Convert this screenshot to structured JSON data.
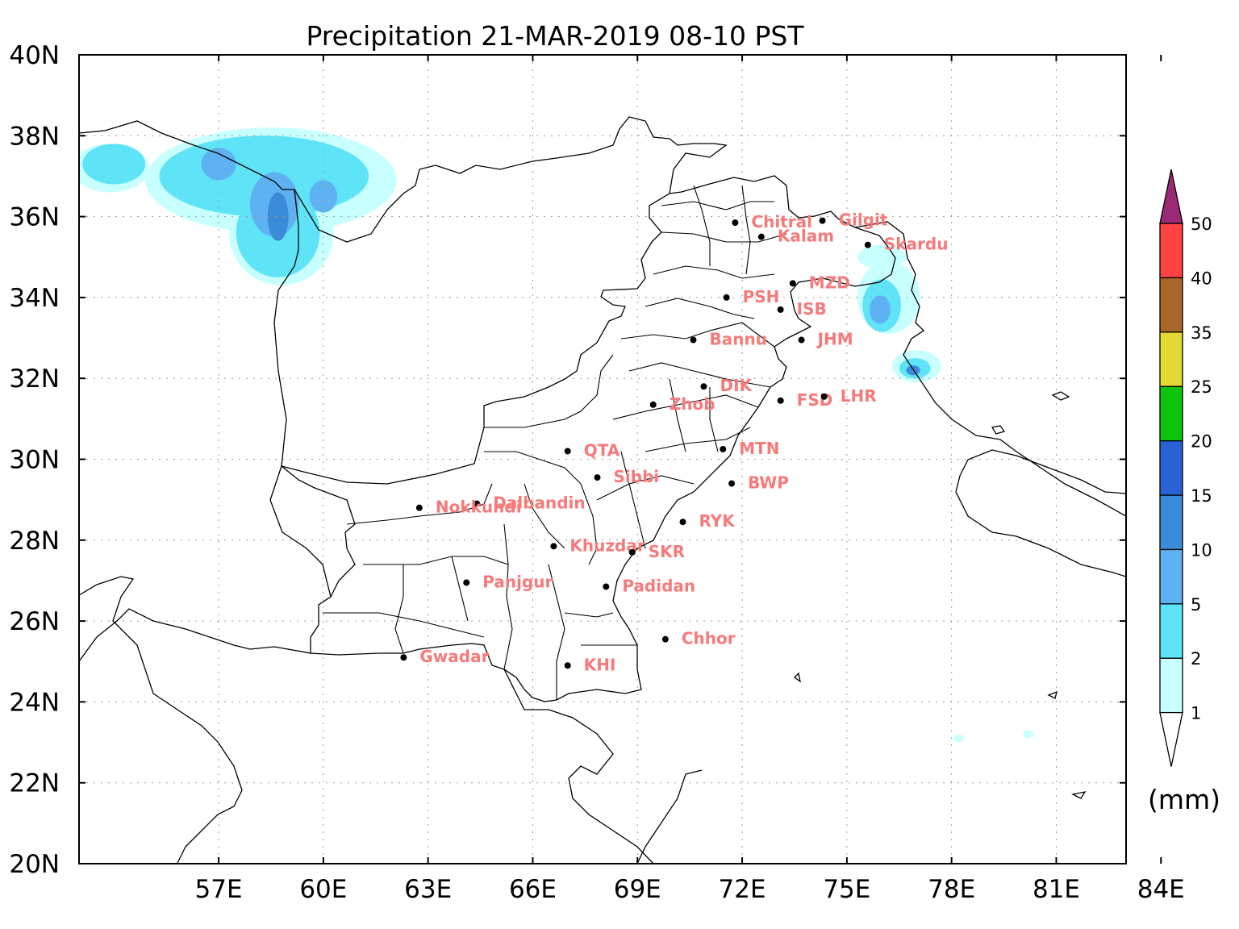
{
  "title": "Precipitation 21-MAR-2019 08-10 PST",
  "axes": {
    "lon_range": [
      53,
      83
    ],
    "lat_range": [
      20,
      40
    ],
    "lon_ticks": [
      {
        "value": 57,
        "label": "57E"
      },
      {
        "value": 60,
        "label": "60E"
      },
      {
        "value": 63,
        "label": "63E"
      },
      {
        "value": 66,
        "label": "66E"
      },
      {
        "value": 69,
        "label": "69E"
      },
      {
        "value": 72,
        "label": "72E"
      },
      {
        "value": 75,
        "label": "75E"
      },
      {
        "value": 78,
        "label": "78E"
      },
      {
        "value": 81,
        "label": "81E"
      },
      {
        "value": 84,
        "label": "84E"
      }
    ],
    "lat_ticks": [
      {
        "value": 20,
        "label": "20N"
      },
      {
        "value": 22,
        "label": "22N"
      },
      {
        "value": 24,
        "label": "24N"
      },
      {
        "value": 26,
        "label": "26N"
      },
      {
        "value": 28,
        "label": "28N"
      },
      {
        "value": 30,
        "label": "30N"
      },
      {
        "value": 32,
        "label": "32N"
      },
      {
        "value": 34,
        "label": "34N"
      },
      {
        "value": 36,
        "label": "36N"
      },
      {
        "value": 38,
        "label": "38N"
      },
      {
        "value": 40,
        "label": "40N"
      }
    ],
    "grid": "dotted"
  },
  "colorbar": {
    "unit_label": "(mm)",
    "levels": [
      {
        "label": "1",
        "color": "#c8ffff"
      },
      {
        "label": "2",
        "color": "#5fe3f7"
      },
      {
        "label": "5",
        "color": "#5fb2f2"
      },
      {
        "label": "10",
        "color": "#3a8cd8"
      },
      {
        "label": "15",
        "color": "#2a62d6"
      },
      {
        "label": "20",
        "color": "#0cc40c"
      },
      {
        "label": "25",
        "color": "#e3d834"
      },
      {
        "label": "35",
        "color": "#a8662a"
      },
      {
        "label": "40",
        "color": "#ff4242"
      },
      {
        "label": "50",
        "color": "#9b2a74"
      }
    ],
    "under_color": "#ffffff",
    "over_color": "#9b2a74"
  },
  "stations": [
    {
      "name": "Chitral",
      "lon": 71.8,
      "lat": 35.85
    },
    {
      "name": "Gilgit",
      "lon": 74.3,
      "lat": 35.9
    },
    {
      "name": "Kalam",
      "lon": 72.55,
      "lat": 35.5
    },
    {
      "name": "Skardu",
      "lon": 75.6,
      "lat": 35.3
    },
    {
      "name": "MZD",
      "lon": 73.45,
      "lat": 34.35
    },
    {
      "name": "PSH",
      "lon": 71.55,
      "lat": 34.0
    },
    {
      "name": "ISB",
      "lon": 73.1,
      "lat": 33.7
    },
    {
      "name": "Bannu",
      "lon": 70.6,
      "lat": 32.95
    },
    {
      "name": "JHM",
      "lon": 73.7,
      "lat": 32.95
    },
    {
      "name": "DIK",
      "lon": 70.9,
      "lat": 31.8
    },
    {
      "name": "Zhob",
      "lon": 69.45,
      "lat": 31.35
    },
    {
      "name": "FSD",
      "lon": 73.1,
      "lat": 31.45
    },
    {
      "name": "LHR",
      "lon": 74.35,
      "lat": 31.55
    },
    {
      "name": "QTA",
      "lon": 67.0,
      "lat": 30.2
    },
    {
      "name": "MTN",
      "lon": 71.45,
      "lat": 30.25
    },
    {
      "name": "Sibbi",
      "lon": 67.85,
      "lat": 29.55
    },
    {
      "name": "BWP",
      "lon": 71.7,
      "lat": 29.4
    },
    {
      "name": "Dalbandin",
      "lon": 64.4,
      "lat": 28.9
    },
    {
      "name": "Nokkundi",
      "lon": 62.75,
      "lat": 28.8
    },
    {
      "name": "RYK",
      "lon": 70.3,
      "lat": 28.45
    },
    {
      "name": "Khuzdar",
      "lon": 66.6,
      "lat": 27.85
    },
    {
      "name": "SKR",
      "lon": 68.85,
      "lat": 27.7
    },
    {
      "name": "Panjgur",
      "lon": 64.1,
      "lat": 26.95
    },
    {
      "name": "Padidan",
      "lon": 68.1,
      "lat": 26.85
    },
    {
      "name": "Chhor",
      "lon": 69.8,
      "lat": 25.55
    },
    {
      "name": "Gwadar",
      "lon": 62.3,
      "lat": 25.1
    },
    {
      "name": "KHI",
      "lon": 67.0,
      "lat": 24.9
    }
  ],
  "precip_patches": [
    {
      "level": 0,
      "lon": 58.5,
      "lat": 36.9,
      "rx": 3.6,
      "ry": 1.3
    },
    {
      "level": 0,
      "lon": 58.8,
      "lat": 35.6,
      "rx": 1.5,
      "ry": 1.3
    },
    {
      "level": 0,
      "lon": 53.9,
      "lat": 37.2,
      "rx": 1.1,
      "ry": 0.6
    },
    {
      "level": 1,
      "lon": 58.3,
      "lat": 37.0,
      "rx": 3.0,
      "ry": 1.0
    },
    {
      "level": 1,
      "lon": 58.7,
      "lat": 35.6,
      "rx": 1.2,
      "ry": 1.1
    },
    {
      "level": 1,
      "lon": 54.0,
      "lat": 37.3,
      "rx": 0.9,
      "ry": 0.5
    },
    {
      "level": 2,
      "lon": 57.0,
      "lat": 37.3,
      "rx": 0.5,
      "ry": 0.4
    },
    {
      "level": 2,
      "lon": 58.6,
      "lat": 36.3,
      "rx": 0.7,
      "ry": 0.8
    },
    {
      "level": 2,
      "lon": 60.0,
      "lat": 36.5,
      "rx": 0.4,
      "ry": 0.4
    },
    {
      "level": 3,
      "lon": 58.7,
      "lat": 36.0,
      "rx": 0.3,
      "ry": 0.6
    },
    {
      "level": 0,
      "lon": 76.2,
      "lat": 34.0,
      "rx": 0.9,
      "ry": 0.9
    },
    {
      "level": 1,
      "lon": 76.0,
      "lat": 33.8,
      "rx": 0.55,
      "ry": 0.65
    },
    {
      "level": 2,
      "lon": 75.95,
      "lat": 33.7,
      "rx": 0.3,
      "ry": 0.35
    },
    {
      "level": 0,
      "lon": 77.0,
      "lat": 32.3,
      "rx": 0.7,
      "ry": 0.4
    },
    {
      "level": 1,
      "lon": 76.95,
      "lat": 32.25,
      "rx": 0.45,
      "ry": 0.25
    },
    {
      "level": 3,
      "lon": 76.9,
      "lat": 32.2,
      "rx": 0.2,
      "ry": 0.12
    },
    {
      "level": 0,
      "lon": 76.0,
      "lat": 35.0,
      "rx": 0.7,
      "ry": 0.3
    },
    {
      "level": 0,
      "lon": 78.2,
      "lat": 23.1,
      "rx": 0.15,
      "ry": 0.1
    },
    {
      "level": 0,
      "lon": 80.2,
      "lat": 23.2,
      "rx": 0.15,
      "ry": 0.1
    }
  ]
}
